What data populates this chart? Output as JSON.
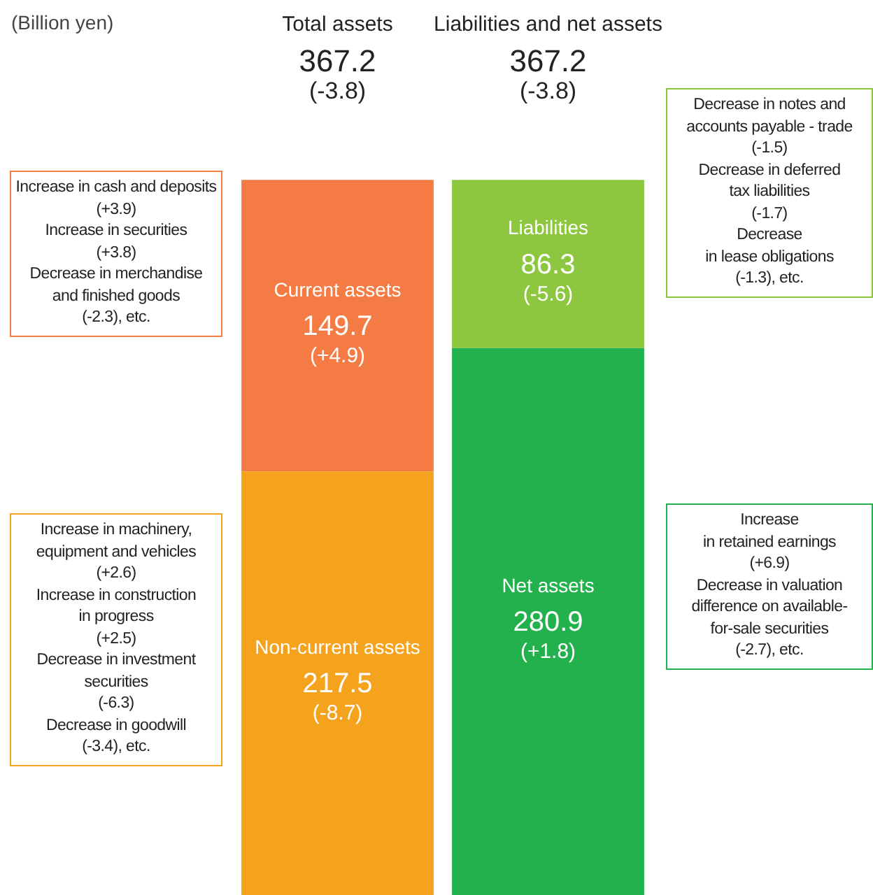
{
  "chart_data": {
    "type": "bar",
    "stacked": true,
    "categories": [
      "Total assets",
      "Liabilities and net assets"
    ],
    "series": [
      {
        "name": "Non-current assets",
        "color": "#f5a31c",
        "values": [
          217.5,
          null
        ],
        "value_labels": [
          "217.5\n(-8.7)",
          null
        ]
      },
      {
        "name": "Current assets",
        "color": "#f47c44",
        "values": [
          149.7,
          null
        ],
        "value_labels": [
          "149.7\n(+4.9)",
          null
        ]
      },
      {
        "name": "Net assets",
        "color": "#22b14c",
        "values": [
          null,
          280.9
        ],
        "value_labels": [
          null,
          "280.9\n(+1.8)"
        ]
      },
      {
        "name": "Liabilities",
        "color": "#8dc63f",
        "values": [
          null,
          86.3
        ],
        "value_labels": [
          null,
          "86.3\n(-5.6)"
        ]
      }
    ],
    "totals": [
      "367.2\n(-3.8)",
      "367.2\n(-3.8)"
    ],
    "grid": false,
    "legend": false,
    "tick_labels": "x",
    "annotations": [
      "(Billion yen)",
      "Increase in cash and deposits\n(+3.9)\nIncrease in securities\n(+3.8)\nDecrease in merchandise\nand finished goods\n(-2.3),  etc.",
      "Increase in machinery,\nequipment and vehicles\n(+2.6)\nIncrease in construction\nin progress\n(+2.5)\nDecrease in investment\nsecurities\n(-6.3)\nDecrease in goodwill\n(-3.4), etc.",
      "Decrease in notes and\naccounts payable - trade\n(-1.5)\nDecrease in deferred\ntax liabilities\n(-1.7)\nDecrease\nin lease obligations\n(-1.3),  etc.",
      "Increase\nin retained earnings\n(+6.9)\nDecrease in valuation\ndifference on available-\nfor-sale securities\n(-2.7),  etc."
    ]
  }
}
